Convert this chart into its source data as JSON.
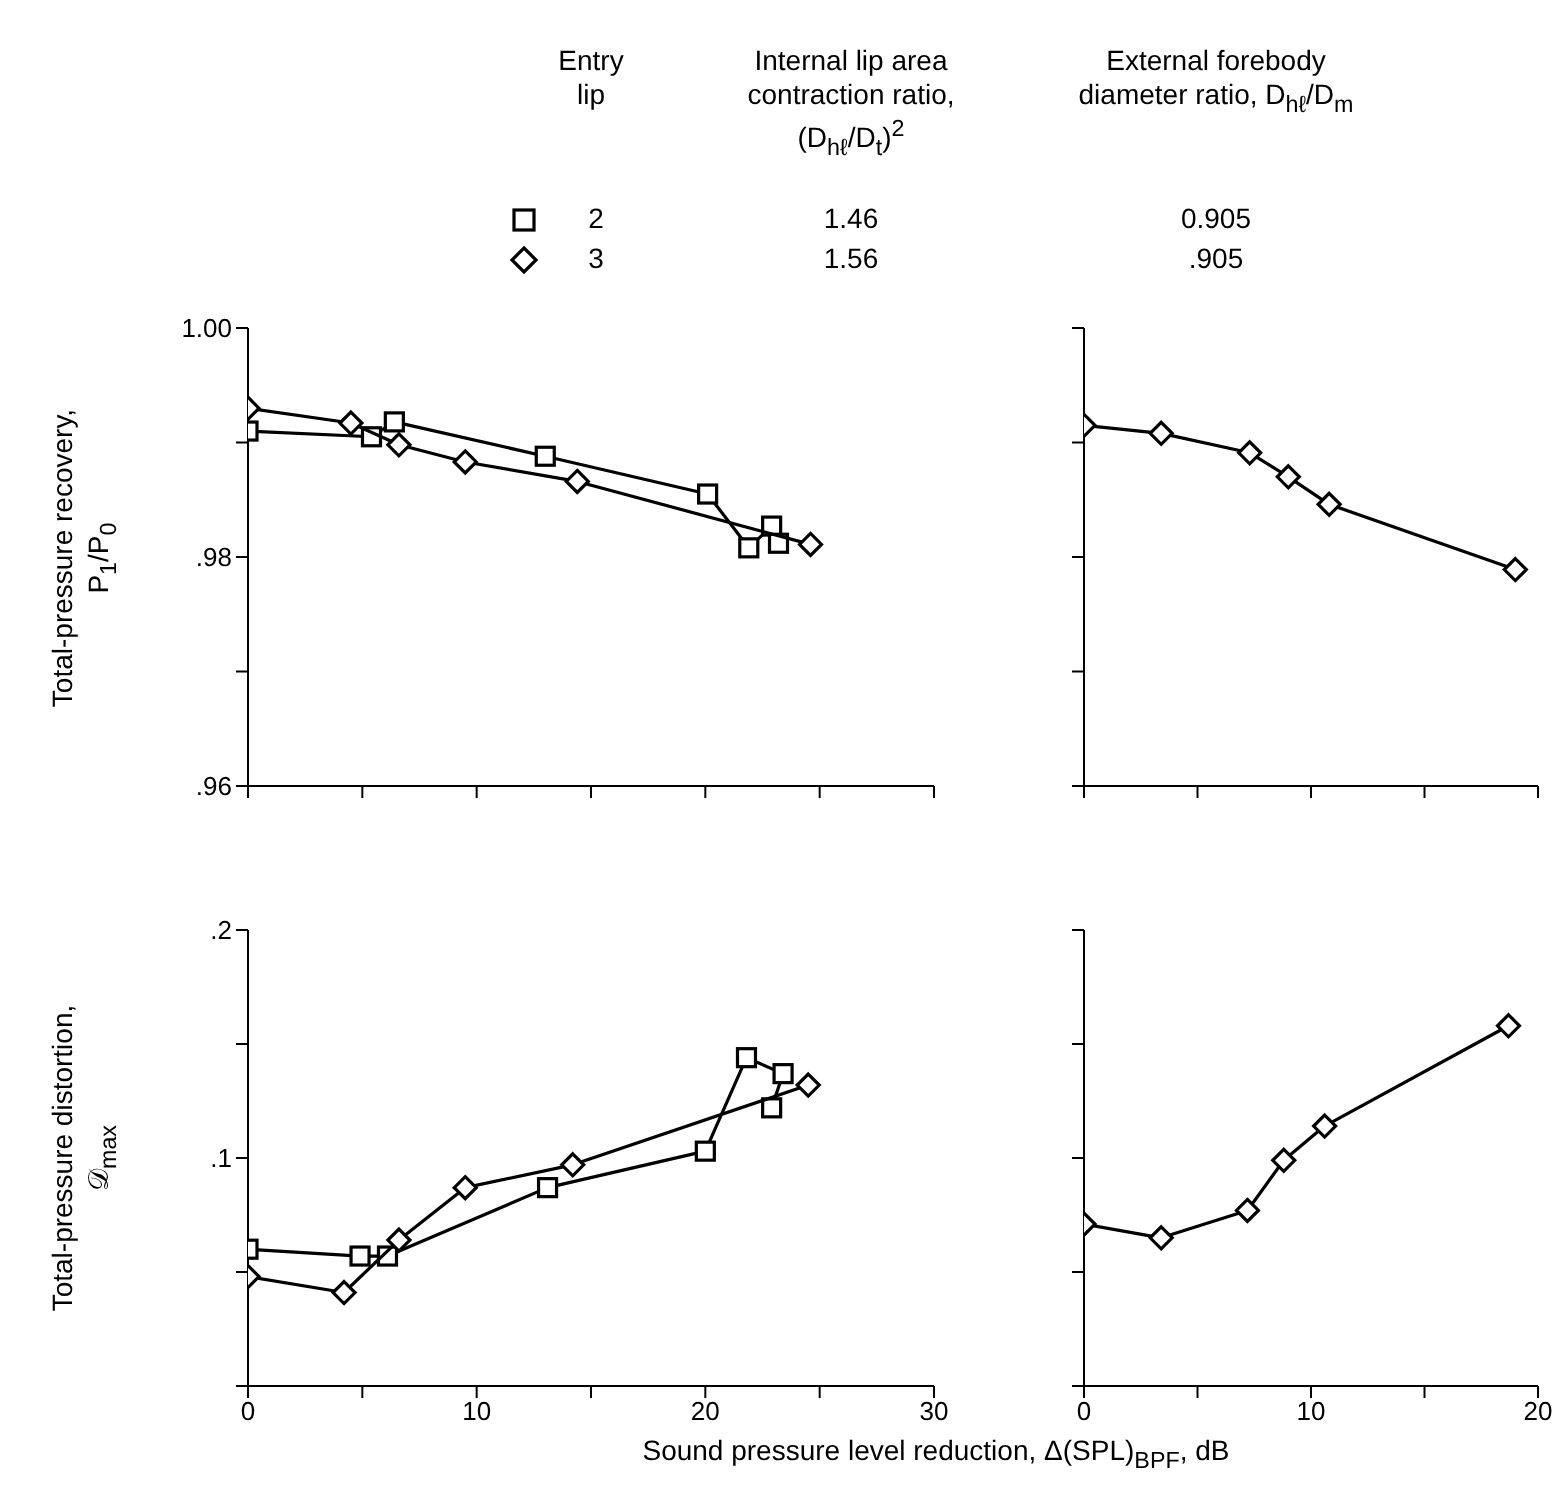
{
  "chart_data": [
    {
      "type": "line",
      "ylabel": "Total-pressure recovery, P$_{1}$/P$_{0}$",
      "legend": "top",
      "legend_title": "Entry lip",
      "annotations": [
        "Internal lip area contraction ratio, (D$_{hℓ}$/D$_{t}$)$^{2}$",
        "External forebody diameter ratio, D$_{hℓ}$/D$_{m}$",
        "1.46",
        "0.905",
        "1.56",
        ".905"
      ],
      "xlim": [
        0,
        30
      ],
      "xticks": [
        0,
        {
          "value": 5,
          "label": null
        },
        10,
        {
          "value": 15,
          "label": null
        },
        20,
        {
          "value": 25,
          "label": null
        },
        30
      ],
      "ylim": [
        0.96,
        1.0
      ],
      "yticks": [
        {
          "value": 0.96,
          "label": ".96"
        },
        {
          "value": 0.97,
          "label": null
        },
        {
          "value": 0.98,
          "label": ".98"
        },
        {
          "value": 0.99,
          "label": null
        },
        {
          "value": 1.0,
          "label": "1.00"
        }
      ],
      "tick_labels": "y",
      "series": [
        {
          "name": "2",
          "color": "#000000",
          "marker": "square",
          "x": [
            0,
            5.4,
            6.4,
            13,
            20.1,
            21.9,
            22.9,
            23.2
          ],
          "values": [
            0.991,
            0.9905,
            0.9918,
            0.9888,
            0.9855,
            0.9808,
            0.9827,
            0.9812
          ]
        },
        {
          "name": "3",
          "color": "#000000",
          "marker": "diamond",
          "x": [
            0,
            4.5,
            6.6,
            9.5,
            14.4,
            24.6
          ],
          "values": [
            0.993,
            0.9917,
            0.9898,
            0.9883,
            0.9866,
            0.9811
          ]
        }
      ]
    },
    {
      "type": "line",
      "xlim": [
        0,
        20
      ],
      "xticks": [
        0,
        5,
        10,
        15,
        20
      ],
      "ylim": [
        0.96,
        1.0
      ],
      "yticks": [
        0.96,
        0.97,
        0.98,
        0.99,
        1.0
      ],
      "tick_labels": false,
      "series": [
        {
          "color": "#000000",
          "marker": "diamond",
          "x": [
            0,
            3.4,
            7.3,
            9,
            10.8,
            19
          ],
          "values": [
            0.9915,
            0.9908,
            0.9891,
            0.987,
            0.9846,
            0.9789
          ]
        }
      ]
    },
    {
      "type": "line",
      "ylabel": "Total-pressure distortion, 𝒟$_{max}$",
      "xlabel": "Sound pressure level reduction, Δ(SPL)$_{BPF}$, dB",
      "xlim": [
        0,
        30
      ],
      "xticks": [
        0,
        {
          "value": 5,
          "label": null
        },
        10,
        {
          "value": 15,
          "label": null
        },
        20,
        {
          "value": 25,
          "label": null
        },
        30
      ],
      "ylim": [
        0,
        0.2
      ],
      "yticks": [
        {
          "value": 0,
          "label": null
        },
        {
          "value": 0.05,
          "label": null
        },
        {
          "value": 0.1,
          "label": ".1"
        },
        {
          "value": 0.15,
          "label": null
        },
        {
          "value": 0.2,
          "label": ".2"
        }
      ],
      "series": [
        {
          "color": "#000000",
          "marker": "square",
          "x": [
            0,
            4.9,
            6.1,
            13.1,
            20,
            21.8,
            23.4,
            22.9
          ],
          "values": [
            0.06,
            0.057,
            0.057,
            0.087,
            0.103,
            0.144,
            0.137,
            0.122
          ]
        },
        {
          "color": "#000000",
          "marker": "diamond",
          "x": [
            0,
            4.2,
            6.6,
            9.5,
            14.2,
            24.5
          ],
          "values": [
            0.048,
            0.041,
            0.064,
            0.087,
            0.097,
            0.132
          ]
        }
      ]
    },
    {
      "type": "line",
      "xlim": [
        0,
        20
      ],
      "xticks": [
        0,
        {
          "value": 5,
          "label": null
        },
        10,
        {
          "value": 15,
          "label": null
        },
        20
      ],
      "ylim": [
        0,
        0.2
      ],
      "yticks": [
        0,
        0.05,
        0.1,
        0.15,
        0.2
      ],
      "tick_labels": "x",
      "series": [
        {
          "color": "#000000",
          "marker": "diamond",
          "x": [
            0,
            3.4,
            7.2,
            8.8,
            10.6,
            18.7
          ],
          "values": [
            0.071,
            0.065,
            0.077,
            0.099,
            0.114,
            0.158
          ]
        }
      ]
    }
  ]
}
